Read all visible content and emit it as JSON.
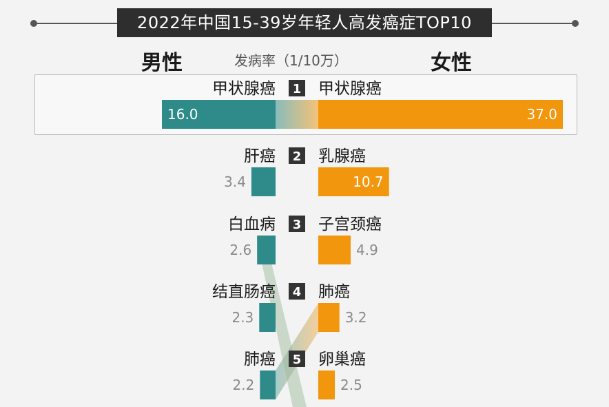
{
  "title": "2022年中国15-39岁年轻人高发癌症TOP10",
  "labels": {
    "male": "男性",
    "female": "女性",
    "unit": "发病率（1/10万）"
  },
  "colors": {
    "male": "#2e8b89",
    "female": "#f2960e",
    "rank_bg": "#333333",
    "title_bg": "#2e2e2e"
  },
  "chart_data": {
    "type": "bar",
    "title": "2022年中国15-39岁年轻人高发癌症TOP10",
    "unit": "发病率（1/10万）",
    "male": [
      {
        "rank": 1,
        "name": "甲状腺癌",
        "value": 16.0
      },
      {
        "rank": 2,
        "name": "肝癌",
        "value": 3.4
      },
      {
        "rank": 3,
        "name": "白血病",
        "value": 2.6
      },
      {
        "rank": 4,
        "name": "结直肠癌",
        "value": 2.3
      },
      {
        "rank": 5,
        "name": "肺癌",
        "value": 2.2
      }
    ],
    "female": [
      {
        "rank": 1,
        "name": "甲状腺癌",
        "value": 37.0
      },
      {
        "rank": 2,
        "name": "乳腺癌",
        "value": 10.7
      },
      {
        "rank": 3,
        "name": "子宫颈癌",
        "value": 4.9
      },
      {
        "rank": 4,
        "name": "肺癌",
        "value": 3.2
      },
      {
        "rank": 5,
        "name": "卵巢癌",
        "value": 2.5
      }
    ]
  }
}
